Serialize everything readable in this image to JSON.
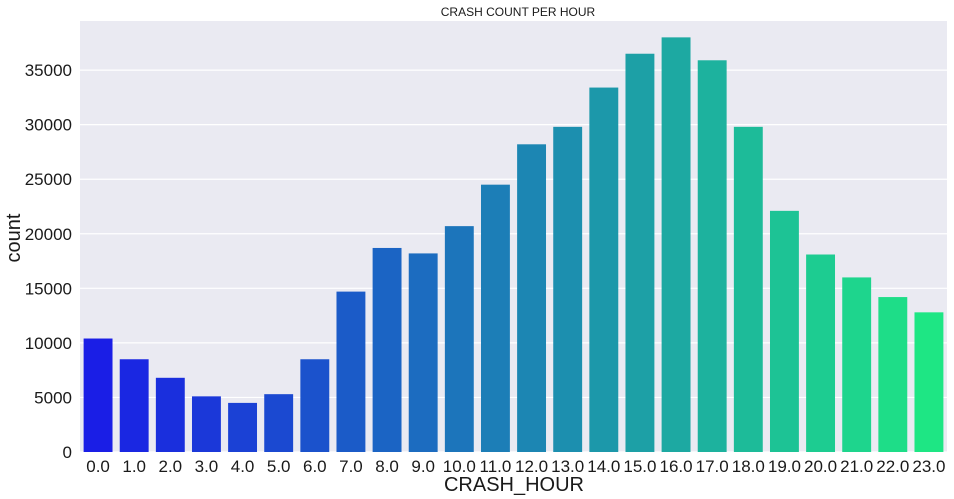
{
  "chart_data": {
    "type": "bar",
    "title": "CRASH COUNT PER HOUR",
    "xlabel": "CRASH_HOUR",
    "ylabel": "count",
    "categories": [
      "0.0",
      "1.0",
      "2.0",
      "3.0",
      "4.0",
      "5.0",
      "6.0",
      "7.0",
      "8.0",
      "9.0",
      "10.0",
      "11.0",
      "12.0",
      "13.0",
      "14.0",
      "15.0",
      "16.0",
      "17.0",
      "18.0",
      "19.0",
      "20.0",
      "21.0",
      "22.0",
      "23.0"
    ],
    "values": [
      10400,
      8500,
      6800,
      5100,
      4500,
      5300,
      8500,
      14700,
      18700,
      18200,
      20700,
      24500,
      28200,
      29800,
      33400,
      36500,
      38000,
      35900,
      29800,
      22100,
      18100,
      16000,
      14200,
      12800
    ],
    "ylim": [
      0,
      39500
    ],
    "yticks": [
      0,
      5000,
      10000,
      15000,
      20000,
      25000,
      30000,
      35000
    ],
    "grid": true,
    "background": "#eaeaf2",
    "palette": "winter",
    "color_start": "#1a1ee6",
    "color_end": "#1ee684"
  }
}
